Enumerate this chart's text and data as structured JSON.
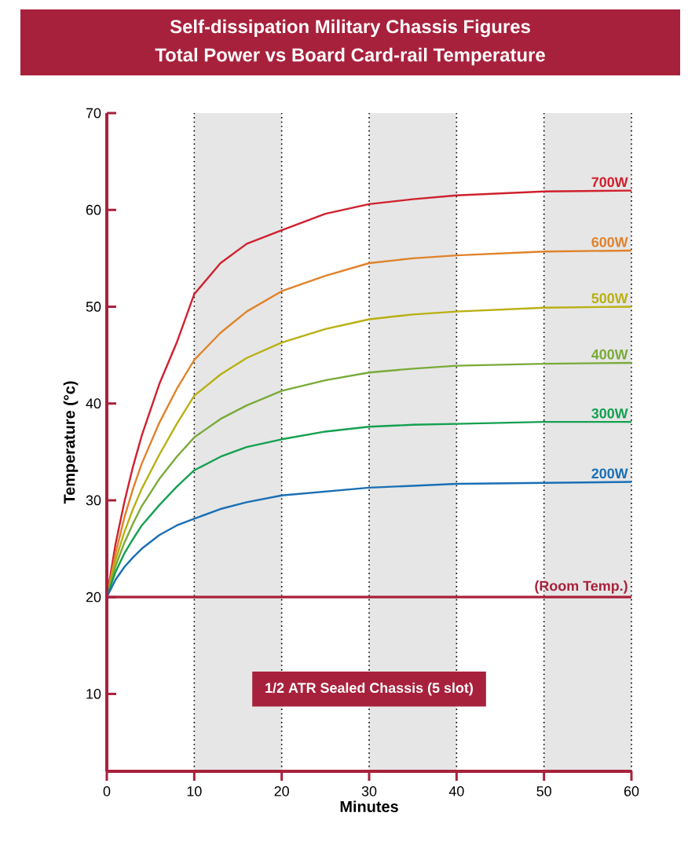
{
  "chart_data": {
    "type": "line",
    "title": "Self-dissipation Military Chassis Figures",
    "subtitle": "Total Power vs Board Card-rail Temperature",
    "xlabel": "Minutes",
    "ylabel": "Temperature (°c)",
    "x": [
      0,
      1,
      2,
      3,
      4,
      6,
      8,
      10,
      13,
      16,
      20,
      25,
      30,
      35,
      40,
      50,
      60
    ],
    "series": [
      {
        "name": "700W",
        "color": "#d0202e",
        "values": [
          20,
          25.5,
          29.8,
          33.5,
          36.7,
          42,
          46.3,
          51.3,
          54.5,
          56.5,
          57.9,
          59.6,
          60.6,
          61.1,
          61.5,
          61.9,
          62
        ]
      },
      {
        "name": "600W",
        "color": "#e0822a",
        "values": [
          20,
          24.5,
          28.2,
          31.2,
          33.8,
          38,
          41.5,
          44.5,
          47.3,
          49.5,
          51.6,
          53.2,
          54.5,
          55,
          55.3,
          55.7,
          55.8
        ]
      },
      {
        "name": "500W",
        "color": "#b8b012",
        "values": [
          20,
          23.8,
          26.7,
          29.1,
          31.2,
          34.7,
          37.9,
          40.8,
          43,
          44.7,
          46.3,
          47.7,
          48.7,
          49.2,
          49.5,
          49.9,
          50
        ]
      },
      {
        "name": "400W",
        "color": "#7aaa3a",
        "values": [
          20,
          23.2,
          25.6,
          27.6,
          29.4,
          32.2,
          34.5,
          36.5,
          38.4,
          39.8,
          41.3,
          42.4,
          43.2,
          43.6,
          43.9,
          44.1,
          44.2
        ]
      },
      {
        "name": "300W",
        "color": "#14a050",
        "values": [
          20,
          22.6,
          24.5,
          26,
          27.4,
          29.5,
          31.4,
          33.1,
          34.5,
          35.5,
          36.3,
          37.1,
          37.6,
          37.8,
          37.9,
          38.1,
          38.1
        ]
      },
      {
        "name": "200W",
        "color": "#1a6fb5",
        "values": [
          20,
          21.8,
          23.1,
          24.1,
          25,
          26.4,
          27.4,
          28.1,
          29.1,
          29.8,
          30.5,
          30.9,
          31.3,
          31.5,
          31.7,
          31.8,
          31.9
        ]
      }
    ],
    "xlim": [
      0,
      60
    ],
    "xticks": [
      0,
      10,
      20,
      30,
      40,
      50,
      60
    ],
    "ylim": [
      2,
      70
    ],
    "yticks": [
      10,
      20,
      30,
      40,
      50,
      60,
      70
    ],
    "grid": "x",
    "line_style": "solid",
    "ref_lines": [
      {
        "axis": "y",
        "value": 20,
        "label": "(Room Temp.)",
        "color": "#a8213c"
      }
    ],
    "bands": [
      {
        "axis": "x",
        "from": 10,
        "to": 20,
        "color": "#e6e6e6"
      },
      {
        "axis": "x",
        "from": 30,
        "to": 40,
        "color": "#e6e6e6"
      },
      {
        "axis": "x",
        "from": 50,
        "to": 60,
        "color": "#e6e6e6"
      }
    ],
    "annotations": [
      "1/2 ATR Sealed Chassis (5 slot)"
    ]
  }
}
